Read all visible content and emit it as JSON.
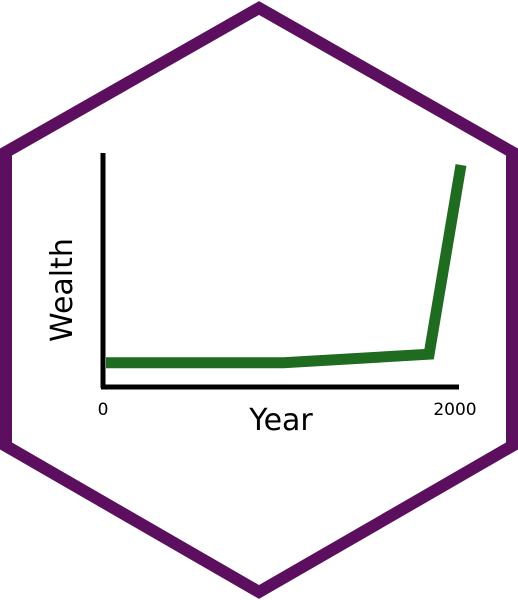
{
  "colors": {
    "hex_border": "#5c0f5e",
    "line": "#1f6b1f",
    "axis": "#000000",
    "background": "#ffffff"
  },
  "chart_data": {
    "type": "line",
    "xlabel": "Year",
    "ylabel": "Wealth",
    "x_tick_labels": [
      "0",
      "2000"
    ],
    "xlim": [
      0,
      2000
    ],
    "ylim": [
      0,
      100
    ],
    "grid": false,
    "series": [
      {
        "points": [
          {
            "x": 0,
            "y": 8
          },
          {
            "x": 1000,
            "y": 8
          },
          {
            "x": 1820,
            "y": 12
          },
          {
            "x": 2000,
            "y": 100
          }
        ]
      }
    ]
  }
}
